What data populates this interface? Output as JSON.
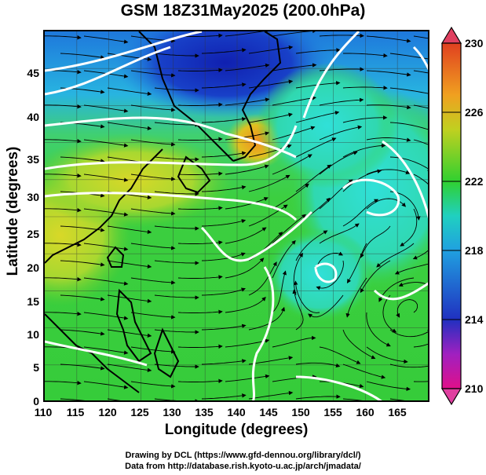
{
  "title": "GSM 18Z31May2025 (200.0hPa)",
  "axes": {
    "xlabel": "Longitude (degrees)",
    "ylabel": "Latitude  (degrees)",
    "x_ticks": [
      "110",
      "115",
      "120",
      "125",
      "130",
      "135",
      "140",
      "145",
      "150",
      "155",
      "160",
      "165"
    ],
    "y_ticks": [
      "0",
      "5",
      "10",
      "15",
      "20",
      "25",
      "30",
      "35",
      "40",
      "45"
    ],
    "xlim": [
      110,
      170
    ],
    "ylim": [
      0,
      50
    ]
  },
  "colorbar": {
    "ticks": [
      "210",
      "214",
      "218",
      "222",
      "226",
      "230"
    ],
    "range": [
      210,
      230
    ],
    "colors": [
      "#e0108a",
      "#2030c0",
      "#20a0e0",
      "#20d0c0",
      "#30d030",
      "#c0d020",
      "#f0a020",
      "#e04020"
    ]
  },
  "credits": {
    "line1": "Drawing by DCL (https://www.gfd-dennou.org/library/dcl/)",
    "line2": "Data from http://database.rish.kyoto-u.ac.jp/arch/jmadata/"
  },
  "field_colors": {
    "green": "#3cd43c",
    "yellowgreen": "#a8d830",
    "cyan": "#30d8c0",
    "blue": "#2080e0",
    "darkblue": "#1838c0",
    "orange": "#f0a020"
  }
}
